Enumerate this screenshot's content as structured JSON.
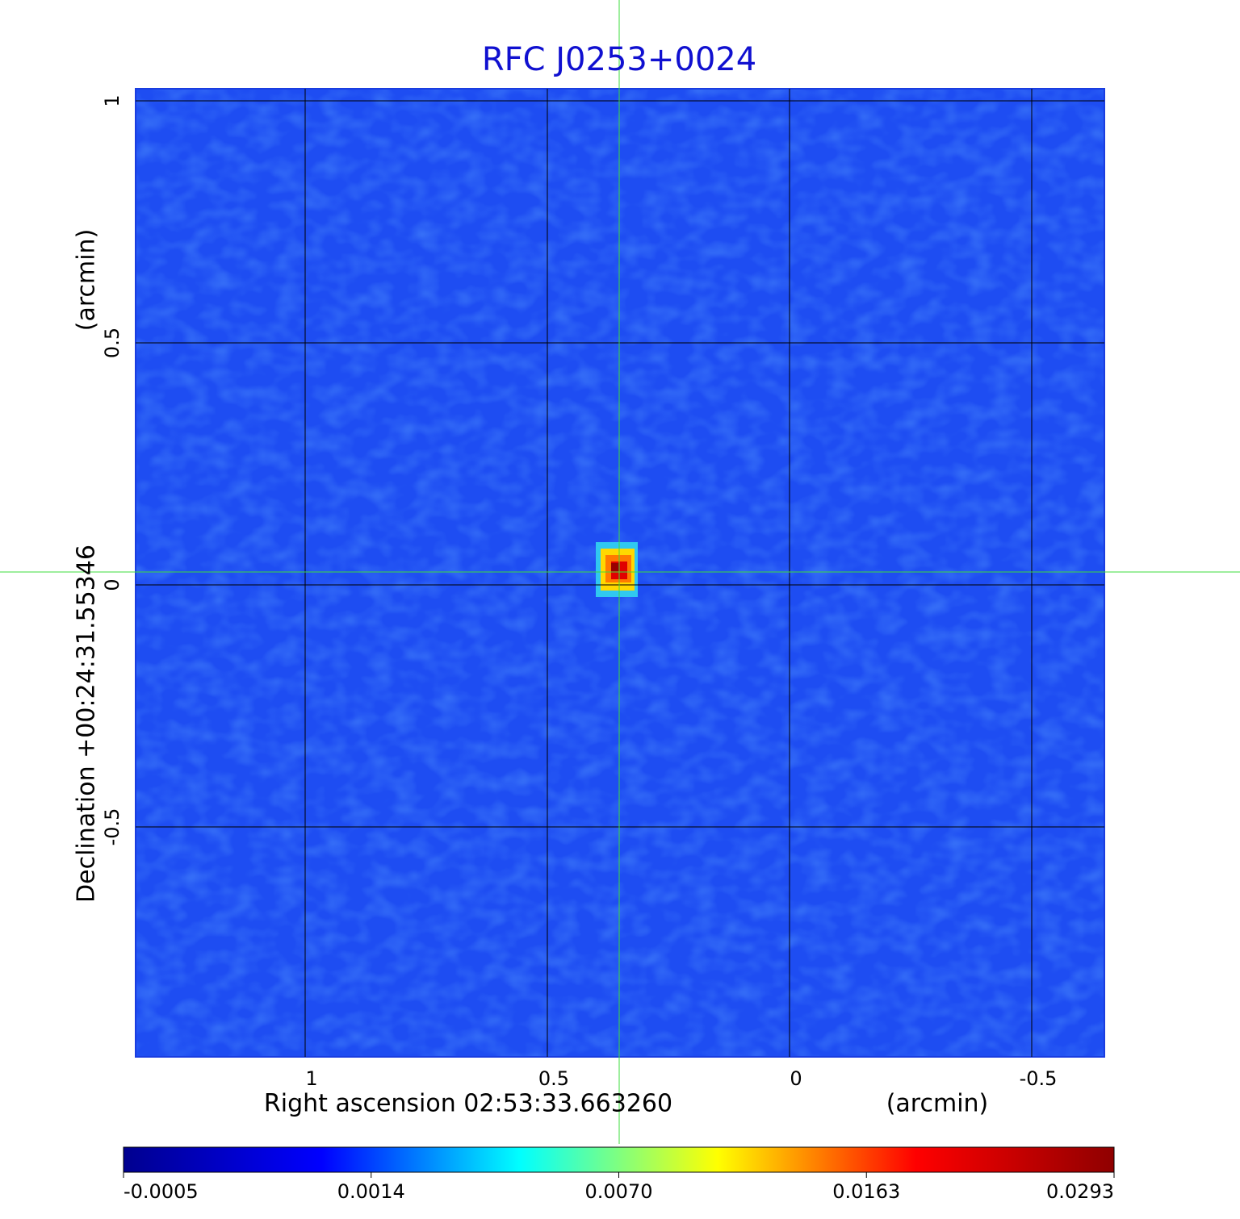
{
  "chart_data": {
    "type": "image",
    "title": "RFC J0253+0024",
    "xlabel": "Right ascension  02:53:33.663260",
    "xunit": "(arcmin)",
    "ylabel": "Declination  +00:24:31.55346",
    "yunit": "(arcmin)",
    "xlim": [
      1.35,
      -0.65
    ],
    "ylim": [
      -0.975,
      1.025
    ],
    "xticks": [
      1.0,
      0.5,
      0.0,
      -0.5
    ],
    "yticks": [
      1.0,
      0.5,
      0.0,
      -0.5
    ],
    "grid": true,
    "colorbar": {
      "ticks": [
        -0.0005,
        0.0014,
        {
          "value": 0.007,
          "label": "0.0070"
        },
        0.0163,
        0.0293
      ],
      "colors": [
        "#00008f",
        "#0000ff",
        "#00ffff",
        "#ffff00",
        "#ff0000",
        "#8f0000"
      ]
    }
  }
}
